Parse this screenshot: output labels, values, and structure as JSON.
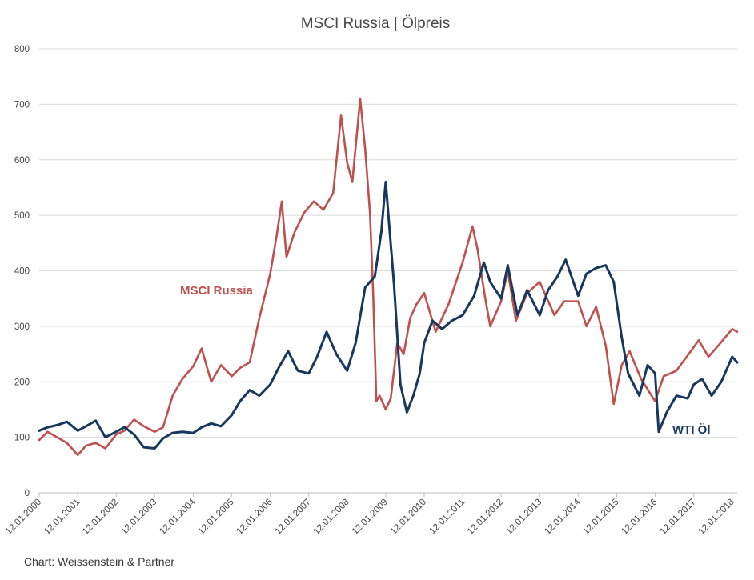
{
  "chart_data": {
    "type": "line",
    "title": "MSCI Russia | Ölpreis",
    "xlabel": "",
    "ylabel": "",
    "ylim": [
      0,
      800
    ],
    "xlim": [
      "2000-01-12",
      "2018-03-01"
    ],
    "y_ticks": [
      "0",
      "100",
      "200",
      "300",
      "400",
      "500",
      "600",
      "700",
      "800"
    ],
    "x_ticks": [
      "12.01.2000",
      "12.01.2001",
      "12.01.2002",
      "12.01.2003",
      "12.01.2004",
      "12.01.2005",
      "12.01.2006",
      "12.01.2007",
      "12.01.2008",
      "12.01.2009",
      "12.01.2010",
      "12.01.2011",
      "12.01.2012",
      "12.01.2013",
      "12.01.2014",
      "12.01.2015",
      "12.01.2016",
      "12.01.2017",
      "12.01.2018"
    ],
    "grid": "horizontal",
    "series": [
      {
        "name": "MSCI Russia",
        "color": "#c0504d",
        "points": [
          [
            "2000-01-12",
            95
          ],
          [
            "2000-04-01",
            110
          ],
          [
            "2000-07-01",
            100
          ],
          [
            "2000-10-01",
            90
          ],
          [
            "2001-01-12",
            68
          ],
          [
            "2001-04-01",
            85
          ],
          [
            "2001-07-01",
            90
          ],
          [
            "2001-10-01",
            80
          ],
          [
            "2002-01-12",
            105
          ],
          [
            "2002-04-01",
            112
          ],
          [
            "2002-07-01",
            132
          ],
          [
            "2002-10-01",
            120
          ],
          [
            "2003-01-12",
            110
          ],
          [
            "2003-04-01",
            118
          ],
          [
            "2003-07-01",
            175
          ],
          [
            "2003-10-01",
            205
          ],
          [
            "2004-01-12",
            228
          ],
          [
            "2004-04-01",
            260
          ],
          [
            "2004-07-01",
            200
          ],
          [
            "2004-10-01",
            230
          ],
          [
            "2005-01-12",
            210
          ],
          [
            "2005-04-01",
            225
          ],
          [
            "2005-07-01",
            235
          ],
          [
            "2005-10-01",
            315
          ],
          [
            "2006-01-12",
            395
          ],
          [
            "2006-03-15",
            465
          ],
          [
            "2006-05-01",
            525
          ],
          [
            "2006-06-15",
            425
          ],
          [
            "2006-09-01",
            470
          ],
          [
            "2006-12-01",
            505
          ],
          [
            "2007-03-01",
            525
          ],
          [
            "2007-06-01",
            510
          ],
          [
            "2007-09-01",
            540
          ],
          [
            "2007-11-15",
            680
          ],
          [
            "2008-01-12",
            595
          ],
          [
            "2008-03-01",
            560
          ],
          [
            "2008-05-15",
            710
          ],
          [
            "2008-07-01",
            620
          ],
          [
            "2008-08-15",
            505
          ],
          [
            "2008-09-15",
            360
          ],
          [
            "2008-10-15",
            165
          ],
          [
            "2008-11-15",
            175
          ],
          [
            "2009-01-12",
            150
          ],
          [
            "2009-03-01",
            170
          ],
          [
            "2009-05-01",
            270
          ],
          [
            "2009-07-01",
            250
          ],
          [
            "2009-09-01",
            315
          ],
          [
            "2009-11-01",
            340
          ],
          [
            "2010-01-12",
            360
          ],
          [
            "2010-05-01",
            290
          ],
          [
            "2010-09-01",
            340
          ],
          [
            "2011-01-12",
            415
          ],
          [
            "2011-04-15",
            480
          ],
          [
            "2011-06-01",
            440
          ],
          [
            "2011-08-15",
            350
          ],
          [
            "2011-10-01",
            300
          ],
          [
            "2012-01-12",
            345
          ],
          [
            "2012-03-15",
            400
          ],
          [
            "2012-06-01",
            310
          ],
          [
            "2012-09-15",
            360
          ],
          [
            "2013-01-12",
            380
          ],
          [
            "2013-06-01",
            320
          ],
          [
            "2013-09-01",
            345
          ],
          [
            "2014-01-12",
            345
          ],
          [
            "2014-04-01",
            300
          ],
          [
            "2014-07-01",
            335
          ],
          [
            "2014-10-01",
            265
          ],
          [
            "2014-12-15",
            160
          ],
          [
            "2015-03-01",
            230
          ],
          [
            "2015-05-15",
            255
          ],
          [
            "2015-09-01",
            205
          ],
          [
            "2016-01-12",
            165
          ],
          [
            "2016-04-01",
            210
          ],
          [
            "2016-08-01",
            220
          ],
          [
            "2016-12-15",
            255
          ],
          [
            "2017-03-01",
            275
          ],
          [
            "2017-06-01",
            245
          ],
          [
            "2017-09-01",
            265
          ],
          [
            "2018-01-12",
            295
          ],
          [
            "2018-03-01",
            290
          ]
        ]
      },
      {
        "name": "WTI Öl",
        "color": "#17375e",
        "points": [
          [
            "2000-01-12",
            112
          ],
          [
            "2000-04-01",
            118
          ],
          [
            "2000-07-01",
            122
          ],
          [
            "2000-10-01",
            128
          ],
          [
            "2001-01-12",
            112
          ],
          [
            "2001-04-01",
            120
          ],
          [
            "2001-07-01",
            130
          ],
          [
            "2001-10-01",
            100
          ],
          [
            "2002-01-12",
            110
          ],
          [
            "2002-04-01",
            118
          ],
          [
            "2002-07-01",
            105
          ],
          [
            "2002-10-01",
            82
          ],
          [
            "2003-01-12",
            80
          ],
          [
            "2003-04-01",
            98
          ],
          [
            "2003-07-01",
            108
          ],
          [
            "2003-10-01",
            110
          ],
          [
            "2004-01-12",
            108
          ],
          [
            "2004-04-01",
            118
          ],
          [
            "2004-07-01",
            125
          ],
          [
            "2004-10-01",
            120
          ],
          [
            "2005-01-12",
            140
          ],
          [
            "2005-04-01",
            165
          ],
          [
            "2005-07-01",
            185
          ],
          [
            "2005-10-01",
            175
          ],
          [
            "2006-01-12",
            195
          ],
          [
            "2006-04-01",
            225
          ],
          [
            "2006-07-01",
            255
          ],
          [
            "2006-10-01",
            220
          ],
          [
            "2007-01-12",
            215
          ],
          [
            "2007-04-01",
            245
          ],
          [
            "2007-07-01",
            290
          ],
          [
            "2007-10-01",
            250
          ],
          [
            "2008-01-12",
            220
          ],
          [
            "2008-04-01",
            270
          ],
          [
            "2008-07-01",
            370
          ],
          [
            "2008-10-01",
            390
          ],
          [
            "2008-12-01",
            470
          ],
          [
            "2009-01-12",
            560
          ],
          [
            "2009-02-15",
            480
          ],
          [
            "2009-04-01",
            375
          ],
          [
            "2009-06-01",
            195
          ],
          [
            "2009-08-01",
            145
          ],
          [
            "2009-10-01",
            175
          ],
          [
            "2009-12-01",
            215
          ],
          [
            "2010-01-12",
            270
          ],
          [
            "2010-04-01",
            310
          ],
          [
            "2010-07-01",
            295
          ],
          [
            "2010-10-01",
            310
          ],
          [
            "2011-01-12",
            320
          ],
          [
            "2011-05-01",
            355
          ],
          [
            "2011-08-01",
            415
          ],
          [
            "2011-10-01",
            380
          ],
          [
            "2012-01-12",
            350
          ],
          [
            "2012-03-15",
            410
          ],
          [
            "2012-06-15",
            320
          ],
          [
            "2012-09-15",
            365
          ],
          [
            "2013-01-12",
            320
          ],
          [
            "2013-04-01",
            365
          ],
          [
            "2013-07-01",
            390
          ],
          [
            "2013-09-15",
            420
          ],
          [
            "2014-01-12",
            355
          ],
          [
            "2014-04-01",
            395
          ],
          [
            "2014-07-01",
            405
          ],
          [
            "2014-10-01",
            410
          ],
          [
            "2014-12-15",
            380
          ],
          [
            "2015-03-01",
            280
          ],
          [
            "2015-05-01",
            215
          ],
          [
            "2015-08-15",
            175
          ],
          [
            "2015-11-01",
            230
          ],
          [
            "2016-01-12",
            215
          ],
          [
            "2016-02-15",
            110
          ],
          [
            "2016-05-01",
            145
          ],
          [
            "2016-08-01",
            175
          ],
          [
            "2016-11-15",
            170
          ],
          [
            "2017-01-12",
            195
          ],
          [
            "2017-04-01",
            205
          ],
          [
            "2017-07-01",
            175
          ],
          [
            "2017-10-01",
            200
          ],
          [
            "2018-01-12",
            245
          ],
          [
            "2018-03-01",
            235
          ]
        ]
      }
    ],
    "annotations": [
      "MSCI Russia",
      "WTI Öl"
    ],
    "source": "Chart: Weissenstein & Partner"
  }
}
